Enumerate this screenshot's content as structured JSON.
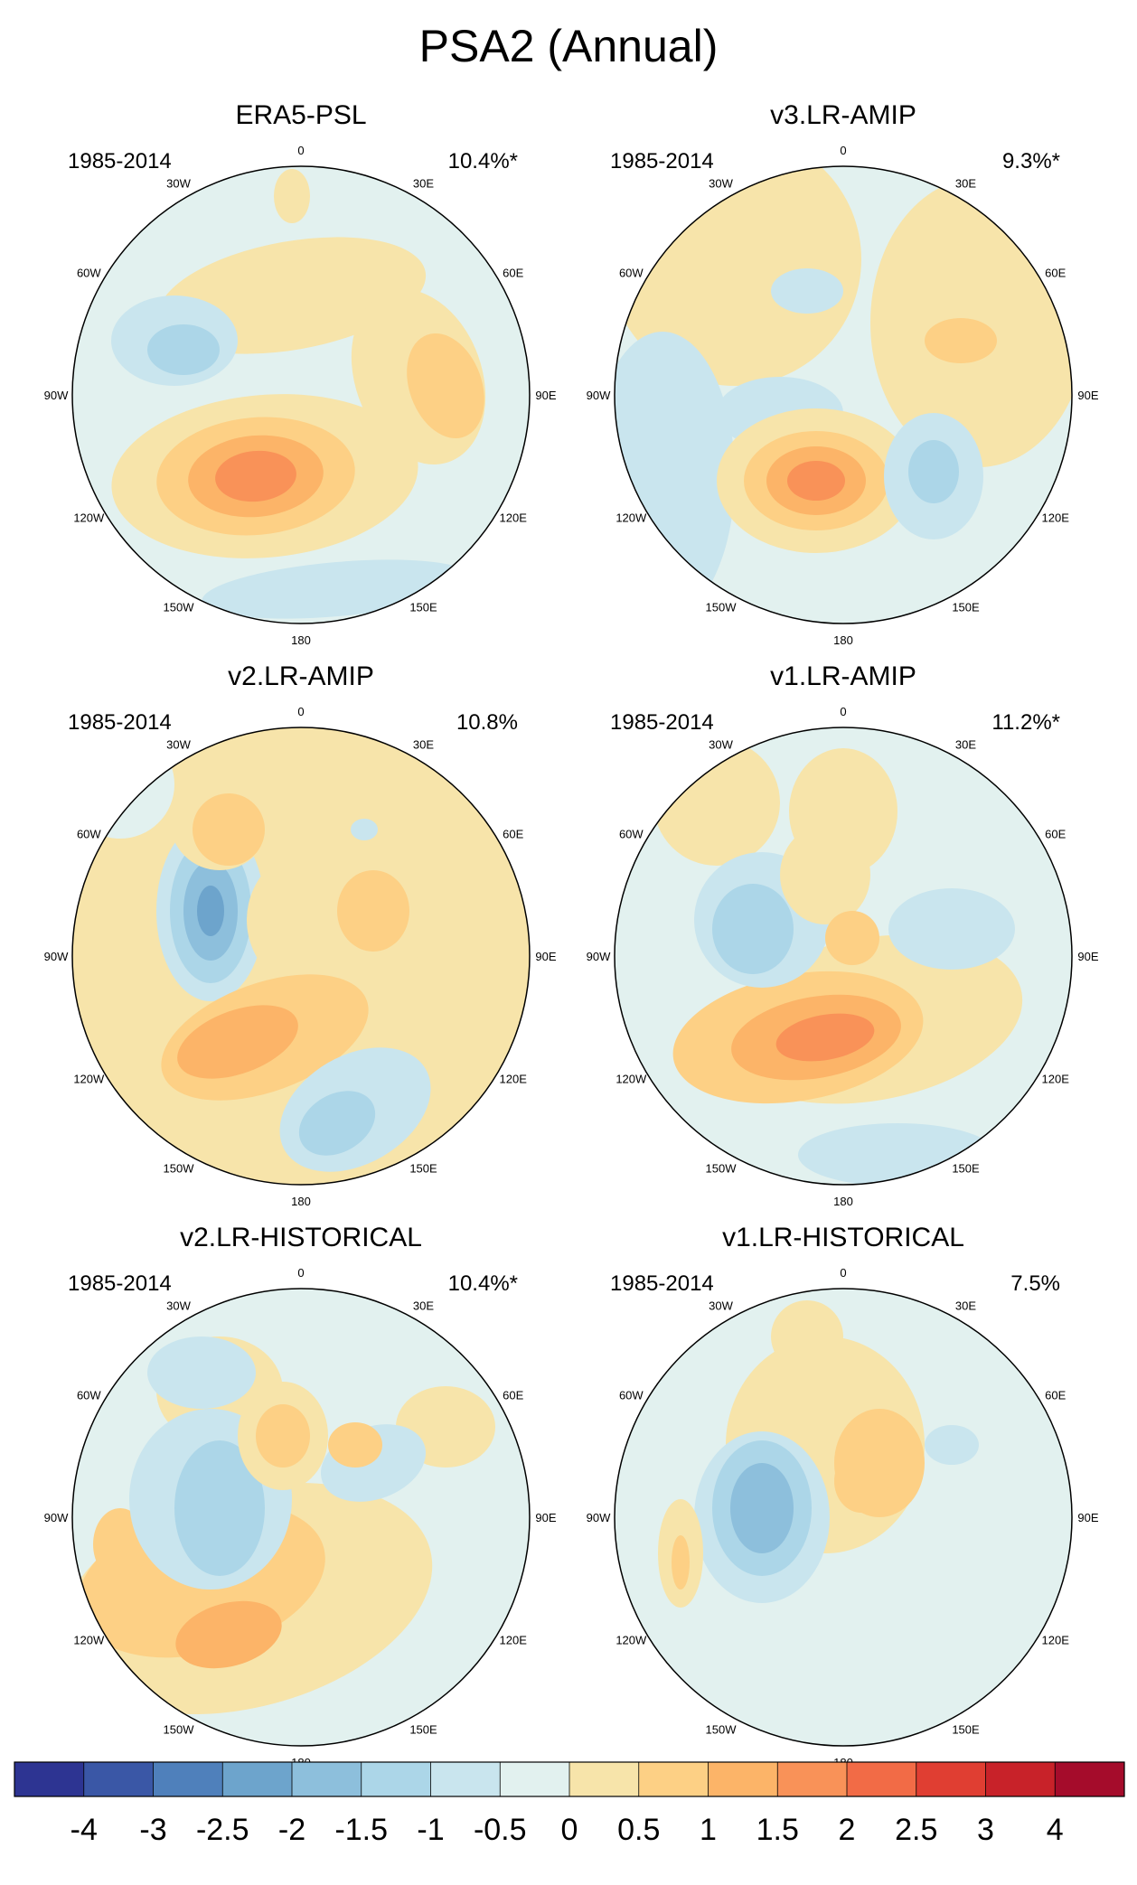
{
  "title": "PSA2 (Annual)",
  "chart_data": {
    "type": "heatmap",
    "projection": "south-polar-stereographic",
    "longitude_labels": [
      "0",
      "30E",
      "60E",
      "90E",
      "120E",
      "150E",
      "180",
      "150W",
      "120W",
      "90W",
      "60W",
      "30W"
    ],
    "panels": [
      {
        "name": "ERA5-PSL",
        "period": "1985-2014",
        "variance": "10.4%*"
      },
      {
        "name": "v3.LR-AMIP",
        "period": "1985-2014",
        "variance": "9.3%*"
      },
      {
        "name": "v2.LR-AMIP",
        "period": "1985-2014",
        "variance": "10.8%"
      },
      {
        "name": "v1.LR-AMIP",
        "period": "1985-2014",
        "variance": "11.2%*"
      },
      {
        "name": "v2.LR-HISTORICAL",
        "period": "1985-2014",
        "variance": "10.4%*"
      },
      {
        "name": "v1.LR-HISTORICAL",
        "period": "1985-2014",
        "variance": "7.5%"
      }
    ],
    "colorbar": {
      "levels": [
        "-4",
        "-3",
        "-2.5",
        "-2",
        "-1.5",
        "-1",
        "-0.5",
        "0",
        "0.5",
        "1",
        "1.5",
        "2",
        "2.5",
        "3",
        "4"
      ],
      "colors": [
        "#2d3492",
        "#3a57a6",
        "#4f80bb",
        "#6da4cc",
        "#8dbfdc",
        "#acd6e8",
        "#c9e5ee",
        "#e2f1ef",
        "#f7e4aa",
        "#fdd085",
        "#fcb468",
        "#f99258",
        "#f26b46",
        "#e03e32",
        "#c82229",
        "#a50c2b"
      ]
    }
  }
}
